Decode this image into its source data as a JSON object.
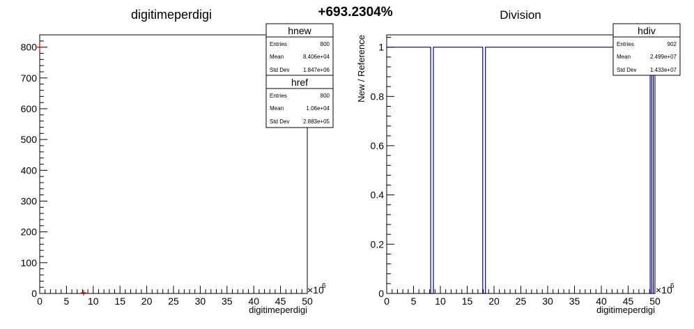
{
  "header": {
    "percent_change": "+693.2304%"
  },
  "left_pad": {
    "title": "digitimeperdigi",
    "xlabel": "digitimeperdigi",
    "x_exponent": "×10",
    "x_exponent_power": "6",
    "stats_new": {
      "name": "hnew",
      "rows": [
        {
          "label": "Entries",
          "value": "800"
        },
        {
          "label": "Mean",
          "value": "8.406e+04"
        },
        {
          "label": "Std Dev",
          "value": "1.847e+06"
        }
      ]
    },
    "stats_ref": {
      "name": "href",
      "rows": [
        {
          "label": "Entries",
          "value": "800"
        },
        {
          "label": "Mean",
          "value": "1.06e+04"
        },
        {
          "label": "Std Dev",
          "value": "2.883e+05"
        }
      ]
    }
  },
  "right_pad": {
    "title": "Division",
    "xlabel": "digitimeperdigi",
    "ylabel": "New / Reference",
    "x_exponent": "×10",
    "x_exponent_power": "6",
    "stats": {
      "name": "hdiv",
      "rows": [
        {
          "label": "Entries",
          "value": "902"
        },
        {
          "label": "Mean",
          "value": "2.499e+07"
        },
        {
          "label": "Std Dev",
          "value": "1.433e+07"
        }
      ]
    }
  },
  "colors": {
    "ref_marker": "#cc0000",
    "hist_line": "#000080",
    "axis": "#000000"
  },
  "chart_data": [
    {
      "type": "scatter",
      "title": "digitimeperdigi",
      "xlabel": "digitimeperdigi",
      "ylabel": "",
      "xlim": [
        0,
        50
      ],
      "ylim": [
        0,
        840
      ],
      "x_scale_note": "x10^6",
      "x_ticks": [
        0,
        5,
        10,
        15,
        20,
        25,
        30,
        35,
        40,
        45,
        50
      ],
      "y_ticks": [
        0,
        100,
        200,
        300,
        400,
        500,
        600,
        700,
        800
      ],
      "series": [
        {
          "name": "href",
          "x": [
            0.0,
            8.2
          ],
          "y": [
            800,
            2
          ]
        }
      ]
    },
    {
      "type": "line",
      "title": "Division",
      "xlabel": "digitimeperdigi",
      "ylabel": "New / Reference",
      "xlim": [
        0,
        50
      ],
      "ylim": [
        0,
        1.05
      ],
      "x_scale_note": "x10^6",
      "x_ticks": [
        0,
        5,
        10,
        15,
        20,
        25,
        30,
        35,
        40,
        45,
        50
      ],
      "y_ticks": [
        0,
        0.2,
        0.4,
        0.6,
        0.8,
        1
      ],
      "series": [
        {
          "name": "hdiv",
          "x": [
            0,
            8.2,
            8.2,
            8.7,
            8.7,
            17.9,
            17.9,
            18.4,
            18.4,
            49.1,
            49.1,
            49.4,
            49.4,
            49.7,
            49.7,
            50
          ],
          "y": [
            1,
            1,
            0,
            0,
            1,
            1,
            0,
            0,
            1,
            1,
            0,
            0,
            1,
            1,
            0,
            0
          ]
        }
      ]
    }
  ]
}
